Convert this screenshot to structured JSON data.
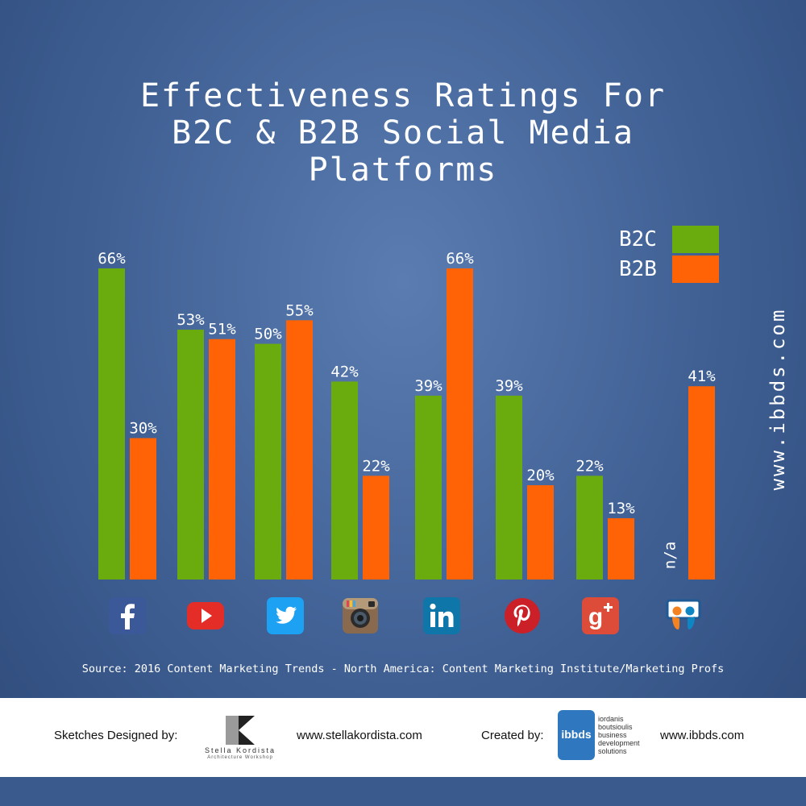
{
  "title": "Effectiveness Ratings For\nB2C & B2B Social Media\nPlatforms",
  "legend": {
    "b2c_label": "B2C",
    "b2b_label": "B2B"
  },
  "colors": {
    "b2c": "#6aab0e",
    "b2b": "#ff6305"
  },
  "side_url": "www.ibbds.com",
  "source": "Source: 2016 Content Marketing Trends - North America: Content Marketing Institute/Marketing Profs",
  "platform_icons": [
    "facebook-icon",
    "youtube-icon",
    "twitter-icon",
    "instagram-icon",
    "linkedin-icon",
    "pinterest-icon",
    "google-plus-icon",
    "slideshare-icon"
  ],
  "chart_data": {
    "type": "bar",
    "categories": [
      "",
      "",
      "",
      "",
      "",
      "",
      "",
      ""
    ],
    "series": [
      {
        "name": "B2C",
        "values": [
          66,
          53,
          50,
          42,
          39,
          39,
          22,
          null
        ],
        "labels": [
          "66%",
          "53%",
          "50%",
          "42%",
          "39%",
          "39%",
          "22%",
          "n/a"
        ]
      },
      {
        "name": "B2B",
        "values": [
          30,
          51,
          55,
          22,
          66,
          20,
          13,
          41
        ],
        "labels": [
          "30%",
          "51%",
          "55%",
          "22%",
          "66%",
          "20%",
          "13%",
          "41%"
        ]
      }
    ],
    "ylim": [
      0,
      66
    ],
    "grid": false,
    "legend_position": "top-right"
  },
  "footer": {
    "sketches_label": "Sketches Designed by:",
    "stella_name": "Stella Kordista",
    "stella_sub": "Architecture Workshop",
    "stella_url": "www.stellakordista.com",
    "created_label": "Created by:",
    "ibbds_name": "ibbds",
    "ibbds_desc": "iordanis\nboutsioulis\nbusiness\ndevelopment\nsolutions",
    "ibbds_url": "www.ibbds.com"
  }
}
